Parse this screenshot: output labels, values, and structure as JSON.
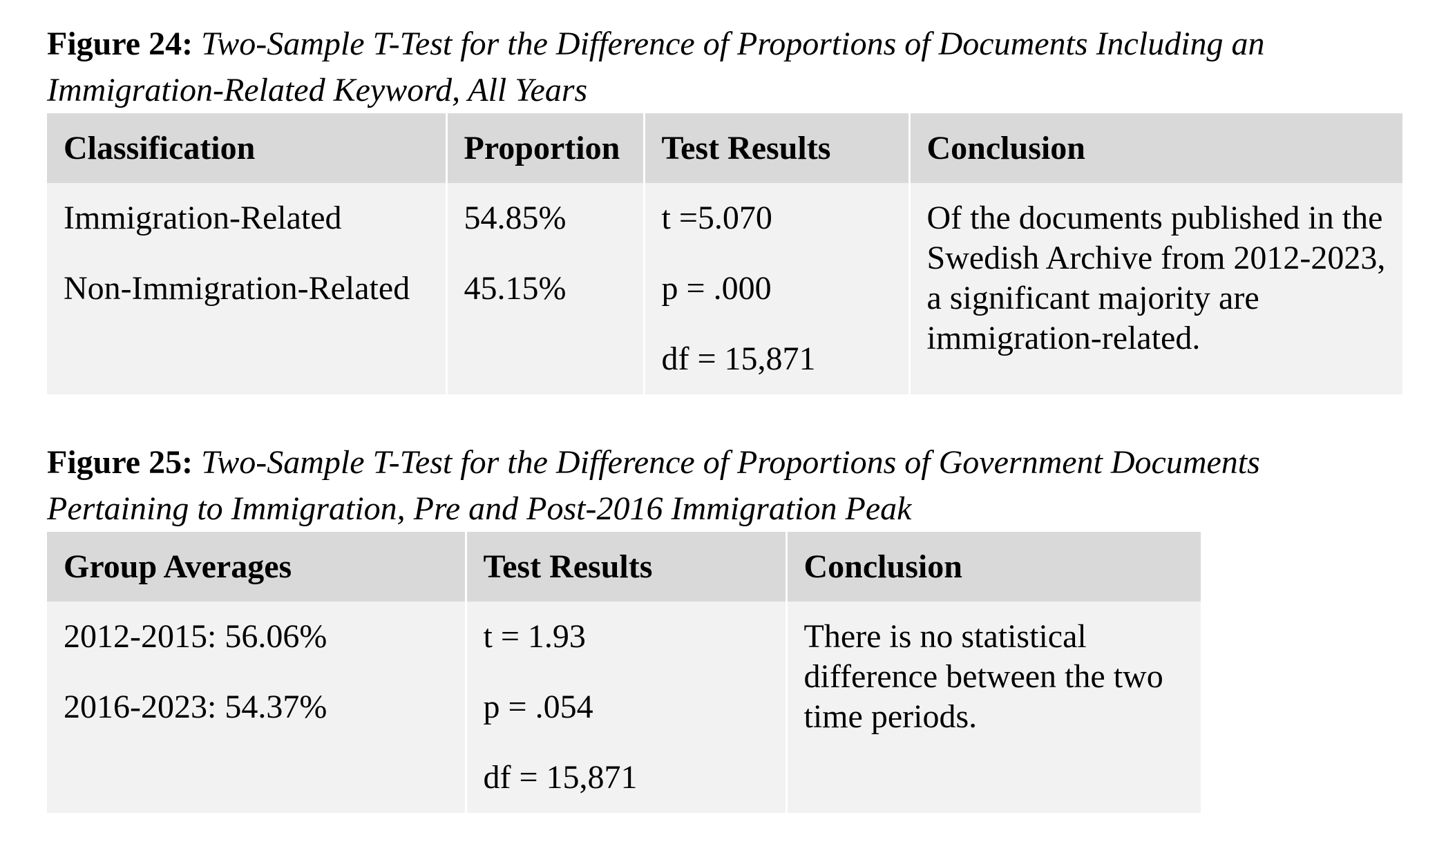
{
  "fig24": {
    "label": "Figure 24:",
    "caption_line1": "Two-Sample T-Test for the Difference of Proportions of Documents Including an",
    "caption_line2": "Immigration-Related Keyword, All Years",
    "headers": [
      "Classification",
      "Proportion",
      "Test Results",
      "Conclusion"
    ],
    "classification": [
      "Immigration-Related",
      "Non-Immigration-Related"
    ],
    "proportion": [
      "54.85%",
      "45.15%"
    ],
    "test_results": [
      "t =5.070",
      "p = .000",
      "df = 15,871"
    ],
    "conclusion": "Of the documents published in the Swedish Archive from 2012-2023, a significant majority are immigration-related."
  },
  "fig25": {
    "label": "Figure 25:",
    "caption_line1": "Two-Sample T-Test for the Difference of Proportions of Government Documents",
    "caption_line2": "Pertaining to Immigration, Pre and Post-2016 Immigration Peak",
    "headers": [
      "Group Averages",
      "Test Results",
      "Conclusion"
    ],
    "group_averages": [
      "2012-2015: 56.06%",
      "2016-2023: 54.37%"
    ],
    "test_results": [
      "t = 1.93",
      "p = .054",
      "df = 15,871"
    ],
    "conclusion": "There is no statistical difference between the two time periods."
  }
}
